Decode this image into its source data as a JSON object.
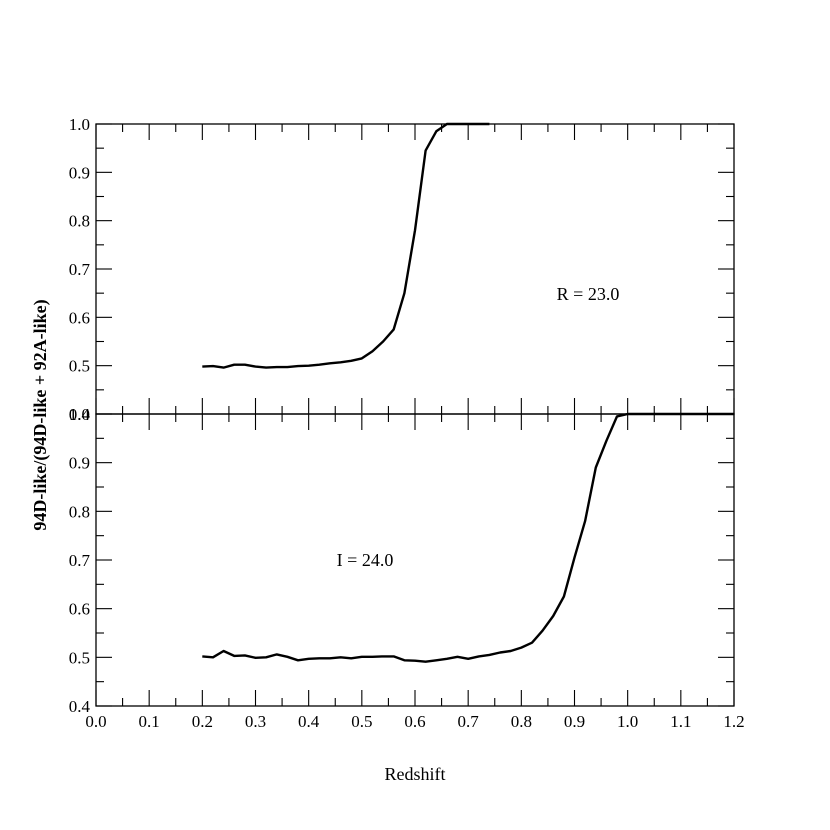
{
  "chart_data": {
    "type": "line",
    "xlabel": "Redshift",
    "ylabel": "94D-like/(94D-like + 92A-like)",
    "xlim": [
      0.0,
      1.2
    ],
    "x_ticks": [
      "0.0",
      "0.1",
      "0.2",
      "0.3",
      "0.4",
      "0.5",
      "0.6",
      "0.7",
      "0.8",
      "0.9",
      "1.0",
      "1.1",
      "1.2"
    ],
    "grid": false,
    "panels": [
      {
        "annotation": "R = 23.0",
        "ylim": [
          0.4,
          1.0
        ],
        "y_ticks": [
          "0.4",
          "0.5",
          "0.6",
          "0.7",
          "0.8",
          "0.9",
          "1.0"
        ],
        "x": [
          0.2,
          0.22,
          0.24,
          0.26,
          0.28,
          0.3,
          0.32,
          0.34,
          0.36,
          0.38,
          0.4,
          0.42,
          0.44,
          0.46,
          0.48,
          0.5,
          0.52,
          0.54,
          0.56,
          0.58,
          0.6,
          0.62,
          0.64,
          0.66,
          0.68,
          0.7,
          0.72,
          0.74
        ],
        "y": [
          0.498,
          0.499,
          0.496,
          0.502,
          0.502,
          0.498,
          0.496,
          0.497,
          0.497,
          0.499,
          0.5,
          0.502,
          0.505,
          0.507,
          0.51,
          0.515,
          0.53,
          0.55,
          0.575,
          0.65,
          0.78,
          0.945,
          0.985,
          1.0,
          1.0,
          1.0,
          1.0,
          1.0
        ]
      },
      {
        "annotation": "I = 24.0",
        "ylim": [
          0.4,
          1.0
        ],
        "y_ticks": [
          "0.4",
          "0.5",
          "0.6",
          "0.7",
          "0.8",
          "0.9",
          "1.0"
        ],
        "x": [
          0.2,
          0.22,
          0.24,
          0.26,
          0.28,
          0.3,
          0.32,
          0.34,
          0.36,
          0.38,
          0.4,
          0.42,
          0.44,
          0.46,
          0.48,
          0.5,
          0.52,
          0.54,
          0.56,
          0.58,
          0.6,
          0.62,
          0.64,
          0.66,
          0.68,
          0.7,
          0.72,
          0.74,
          0.76,
          0.78,
          0.8,
          0.82,
          0.84,
          0.86,
          0.88,
          0.9,
          0.92,
          0.94,
          0.96,
          0.98,
          1.0,
          1.02,
          1.04,
          1.06,
          1.08,
          1.1,
          1.12,
          1.14,
          1.16,
          1.18,
          1.2
        ],
        "y": [
          0.502,
          0.5,
          0.513,
          0.503,
          0.504,
          0.499,
          0.5,
          0.506,
          0.501,
          0.494,
          0.497,
          0.498,
          0.498,
          0.5,
          0.498,
          0.501,
          0.501,
          0.502,
          0.502,
          0.494,
          0.493,
          0.491,
          0.494,
          0.497,
          0.501,
          0.497,
          0.502,
          0.505,
          0.51,
          0.513,
          0.52,
          0.53,
          0.555,
          0.585,
          0.625,
          0.705,
          0.78,
          0.89,
          0.945,
          0.995,
          1.0,
          1.0,
          1.0,
          1.0,
          1.0,
          1.0,
          1.0,
          1.0,
          1.0,
          1.0,
          1.0
        ]
      }
    ]
  }
}
